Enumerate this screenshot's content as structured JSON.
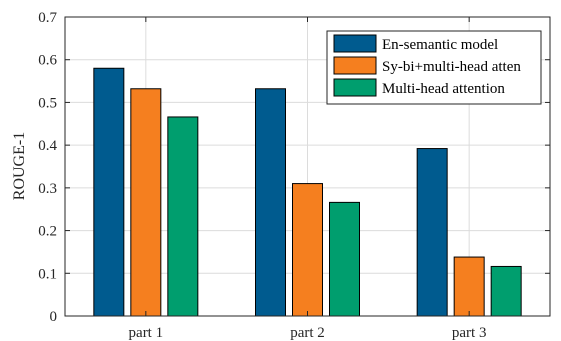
{
  "chart_data": {
    "type": "bar",
    "title": "",
    "xlabel": "",
    "ylabel": "ROUGE-1",
    "categories": [
      "part 1",
      "part 2",
      "part 3"
    ],
    "series": [
      {
        "name": "En-semantic model",
        "color": "#005b8f",
        "values": [
          0.58,
          0.532,
          0.392
        ]
      },
      {
        "name": "Sy-bi+multi-head atten",
        "color": "#f57f1f",
        "values": [
          0.532,
          0.31,
          0.138
        ]
      },
      {
        "name": "Multi-head attention",
        "color": "#009e6e",
        "values": [
          0.466,
          0.266,
          0.116
        ]
      }
    ],
    "ylim": [
      0,
      0.7
    ],
    "yticks": [
      "0",
      "0.1",
      "0.2",
      "0.3",
      "0.4",
      "0.5",
      "0.6",
      "0.7"
    ],
    "ytick_values": [
      0,
      0.1,
      0.2,
      0.3,
      0.4,
      0.5,
      0.6,
      0.7
    ],
    "grid": true,
    "legend_position": "top-right"
  }
}
